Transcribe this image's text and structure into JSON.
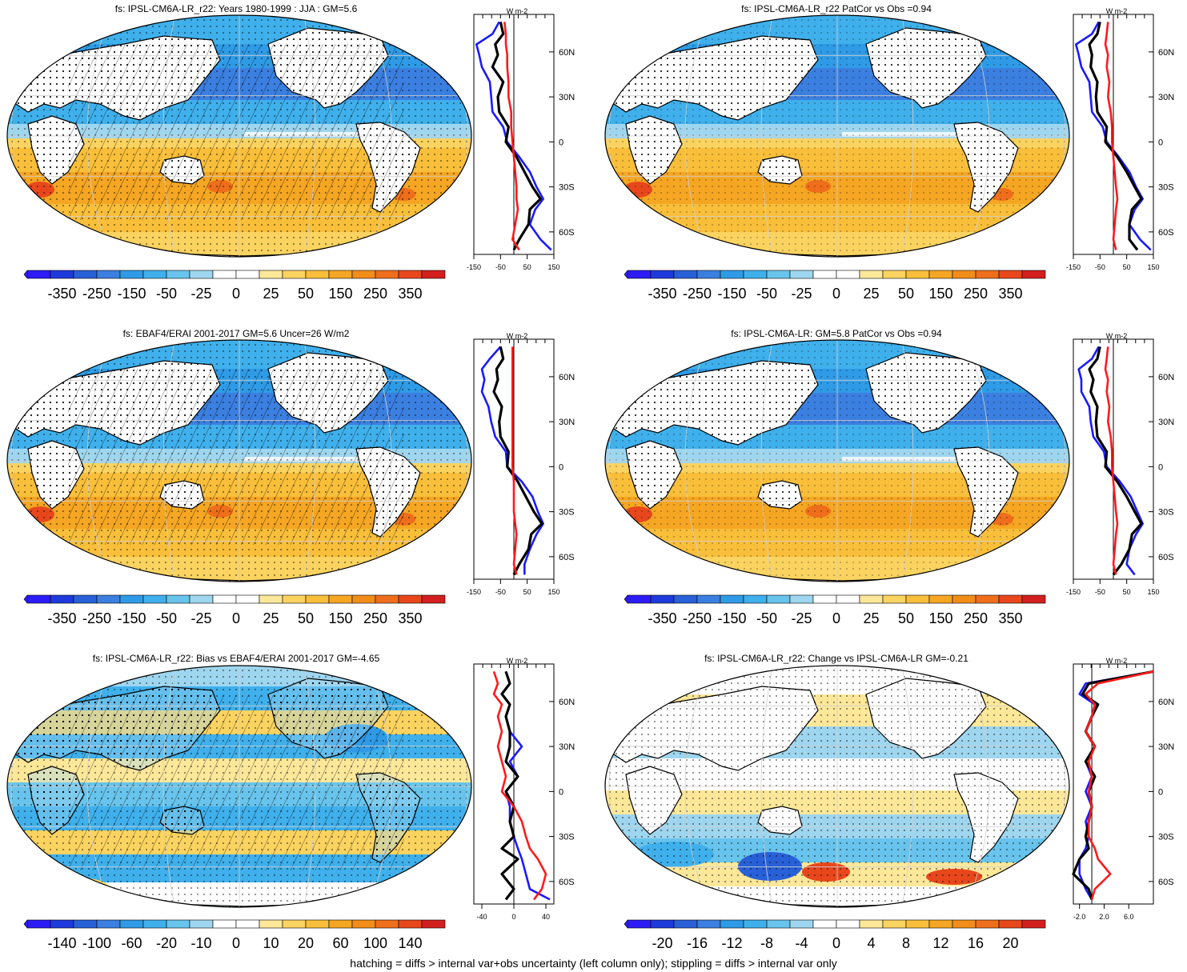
{
  "chart_data": [
    {
      "type": "map",
      "id": "p1",
      "title": "fs: IPSL-CM6A-LR_r22: Years 1980-1999 : JJA : GM=5.6",
      "colorbar_ticks": [
        "-350",
        "-250",
        "-150",
        "-50",
        "-25",
        "0",
        "25",
        "50",
        "150",
        "250",
        "350"
      ],
      "colorbar_range": [
        -350,
        350
      ],
      "hatching": true,
      "zonal_mean": {
        "ylabel": "W m-2",
        "xticks": [
          "-150",
          "-50",
          "50",
          "150"
        ],
        "xlim": [
          -150,
          150
        ],
        "lat_labels": [
          "60N",
          "30N",
          "0",
          "30S",
          "60S"
        ],
        "series": [
          {
            "name": "blue",
            "color": "#1a1aff",
            "lat": [
              80,
              72,
              65,
              58,
              50,
              40,
              30,
              20,
              10,
              0,
              -10,
              -20,
              -30,
              -38,
              -45,
              -55,
              -65,
              -72
            ],
            "values": [
              -55,
              -80,
              -140,
              -130,
              -120,
              -90,
              -85,
              -80,
              -40,
              -25,
              20,
              60,
              85,
              110,
              80,
              60,
              100,
              140
            ]
          },
          {
            "name": "black",
            "color": "#000000",
            "lat": [
              80,
              72,
              65,
              58,
              50,
              40,
              30,
              20,
              10,
              0,
              -10,
              -20,
              -30,
              -38,
              -45,
              -55,
              -65,
              -72
            ],
            "values": [
              -50,
              -40,
              -70,
              -60,
              -80,
              -40,
              -60,
              -55,
              -20,
              -30,
              10,
              40,
              70,
              100,
              60,
              55,
              20,
              0
            ]
          },
          {
            "name": "red",
            "color": "#ff1a1a",
            "lat": [
              80,
              72,
              65,
              58,
              50,
              40,
              30,
              20,
              10,
              0,
              -10,
              -20,
              -30,
              -38,
              -45,
              -55,
              -65,
              -72
            ],
            "values": [
              -35,
              -30,
              -30,
              -25,
              -25,
              -20,
              -20,
              -10,
              -10,
              -5,
              0,
              5,
              10,
              10,
              15,
              5,
              -5,
              20
            ]
          }
        ]
      }
    },
    {
      "type": "map",
      "id": "p2",
      "title": "fs: IPSL-CM6A-LR_r22 PatCor vs Obs =0.94",
      "colorbar_ticks": [
        "-350",
        "-250",
        "-150",
        "-50",
        "-25",
        "0",
        "25",
        "50",
        "150",
        "250",
        "350"
      ],
      "colorbar_range": [
        -350,
        350
      ],
      "hatching": false,
      "zonal_mean": {
        "ylabel": "W m-2",
        "xticks": [
          "-150",
          "-50",
          "50",
          "150"
        ],
        "xlim": [
          -150,
          150
        ],
        "lat_labels": [
          "60N",
          "30N",
          "0",
          "30S",
          "60S"
        ],
        "series": [
          {
            "name": "blue",
            "color": "#1a1aff",
            "lat": [
              80,
              72,
              65,
              58,
              50,
              40,
              30,
              20,
              10,
              0,
              -10,
              -20,
              -30,
              -38,
              -45,
              -55,
              -65,
              -72
            ],
            "values": [
              -55,
              -80,
              -140,
              -130,
              -120,
              -90,
              -85,
              -80,
              -40,
              -25,
              20,
              60,
              85,
              110,
              80,
              60,
              100,
              140
            ]
          },
          {
            "name": "black",
            "color": "#000000",
            "lat": [
              80,
              72,
              65,
              58,
              50,
              40,
              30,
              20,
              10,
              0,
              -10,
              -20,
              -30,
              -38,
              -45,
              -55,
              -65,
              -72
            ],
            "values": [
              -50,
              -60,
              -90,
              -80,
              -85,
              -60,
              -65,
              -60,
              -25,
              -30,
              15,
              50,
              80,
              105,
              70,
              60,
              60,
              90
            ]
          },
          {
            "name": "red",
            "color": "#ff1a1a",
            "lat": [
              80,
              72,
              65,
              58,
              50,
              40,
              30,
              20,
              10,
              0,
              -10,
              -20,
              -30,
              -38,
              -45,
              -55,
              -65,
              -72
            ],
            "values": [
              -20,
              -25,
              -30,
              -20,
              -25,
              -15,
              -20,
              -10,
              -5,
              -5,
              0,
              5,
              10,
              15,
              10,
              5,
              0,
              10
            ]
          }
        ]
      }
    },
    {
      "type": "map",
      "id": "p3",
      "title": "fs: EBAF4/ERAI 2001-2017 GM=5.6 Uncer=26 W/m2",
      "colorbar_ticks": [
        "-350",
        "-250",
        "-150",
        "-50",
        "-25",
        "0",
        "25",
        "50",
        "150",
        "250",
        "350"
      ],
      "colorbar_range": [
        -350,
        350
      ],
      "hatching": true,
      "zonal_mean": {
        "ylabel": "W m-2",
        "xticks": [
          "-150",
          "-50",
          "50",
          "150"
        ],
        "xlim": [
          -150,
          150
        ],
        "lat_labels": [
          "60N",
          "30N",
          "0",
          "30S",
          "60S"
        ],
        "series": [
          {
            "name": "blue",
            "color": "#1a1aff",
            "lat": [
              80,
              72,
              65,
              58,
              50,
              40,
              30,
              20,
              10,
              0,
              -10,
              -20,
              -30,
              -38,
              -45,
              -55,
              -65,
              -72
            ],
            "values": [
              -50,
              -90,
              -120,
              -110,
              -120,
              -95,
              -85,
              -70,
              -30,
              -25,
              30,
              70,
              90,
              110,
              85,
              60,
              40,
              40
            ]
          },
          {
            "name": "black",
            "color": "#000000",
            "lat": [
              80,
              72,
              65,
              58,
              50,
              40,
              30,
              20,
              10,
              0,
              -10,
              -20,
              -30,
              -38,
              -45,
              -55,
              -65,
              -72
            ],
            "values": [
              -50,
              -40,
              -65,
              -60,
              -75,
              -45,
              -55,
              -50,
              -20,
              -25,
              15,
              45,
              75,
              105,
              65,
              55,
              20,
              0
            ]
          },
          {
            "name": "red",
            "color": "#ff1a1a",
            "lat": [
              80,
              72,
              65,
              58,
              50,
              40,
              30,
              20,
              10,
              0,
              -10,
              -20,
              -30,
              -38,
              -45,
              -55,
              -65,
              -72
            ],
            "values": [
              -5,
              -5,
              -5,
              -5,
              -5,
              -5,
              -5,
              -5,
              -5,
              -5,
              0,
              0,
              0,
              5,
              10,
              5,
              0,
              10
            ]
          }
        ]
      }
    },
    {
      "type": "map",
      "id": "p4",
      "title": "fs: IPSL-CM6A-LR: GM=5.8 PatCor vs Obs =0.94",
      "colorbar_ticks": [
        "-350",
        "-250",
        "-150",
        "-50",
        "-25",
        "0",
        "25",
        "50",
        "150",
        "250",
        "350"
      ],
      "colorbar_range": [
        -350,
        350
      ],
      "hatching": false,
      "zonal_mean": {
        "ylabel": "W m-2",
        "xticks": [
          "-150",
          "-50",
          "50",
          "150"
        ],
        "xlim": [
          -150,
          150
        ],
        "lat_labels": [
          "60N",
          "30N",
          "0",
          "30S",
          "60S"
        ],
        "series": [
          {
            "name": "blue",
            "color": "#1a1aff",
            "lat": [
              80,
              72,
              65,
              58,
              50,
              40,
              30,
              20,
              10,
              0,
              -10,
              -20,
              -30,
              -38,
              -45,
              -55,
              -65,
              -72
            ],
            "values": [
              -55,
              -80,
              -130,
              -120,
              -120,
              -90,
              -85,
              -75,
              -35,
              -25,
              25,
              65,
              90,
              110,
              85,
              60,
              50,
              80
            ]
          },
          {
            "name": "black",
            "color": "#000000",
            "lat": [
              80,
              72,
              65,
              58,
              50,
              40,
              30,
              20,
              10,
              0,
              -10,
              -20,
              -30,
              -38,
              -45,
              -55,
              -65,
              -72
            ],
            "values": [
              -50,
              -60,
              -90,
              -75,
              -85,
              -60,
              -65,
              -60,
              -25,
              -30,
              15,
              50,
              80,
              105,
              70,
              60,
              30,
              0
            ]
          },
          {
            "name": "red",
            "color": "#ff1a1a",
            "lat": [
              80,
              72,
              65,
              58,
              50,
              40,
              30,
              20,
              10,
              0,
              -10,
              -20,
              -30,
              -38,
              -45,
              -55,
              -65,
              -72
            ],
            "values": [
              -20,
              -25,
              -30,
              -20,
              -25,
              -15,
              -20,
              -10,
              -5,
              -5,
              0,
              5,
              10,
              15,
              10,
              5,
              0,
              10
            ]
          }
        ]
      }
    },
    {
      "type": "map",
      "id": "p5",
      "title": "fs: IPSL-CM6A-LR_r22: Bias vs EBAF4/ERAI 2001-2017 GM=-4.65",
      "colorbar_ticks": [
        "-140",
        "-100",
        "-60",
        "-20",
        "-10",
        "0",
        "10",
        "20",
        "60",
        "100",
        "140"
      ],
      "colorbar_range": [
        -140,
        140
      ],
      "hatching": true,
      "zonal_mean": {
        "ylabel": "W m-2",
        "xticks": [
          "-40",
          "0",
          "40"
        ],
        "xlim": [
          -50,
          50
        ],
        "lat_labels": [
          "60N",
          "30N",
          "0",
          "30S",
          "60S"
        ],
        "series": [
          {
            "name": "blue",
            "color": "#1a1aff",
            "lat": [
              80,
              72,
              65,
              58,
              50,
              40,
              30,
              20,
              10,
              0,
              -10,
              -20,
              -30,
              -38,
              -45,
              -55,
              -65,
              -72
            ],
            "values": [
              -10,
              -5,
              -15,
              -5,
              -10,
              -5,
              10,
              -5,
              5,
              -10,
              -5,
              -5,
              0,
              5,
              10,
              15,
              20,
              45
            ]
          },
          {
            "name": "black",
            "color": "#000000",
            "lat": [
              80,
              72,
              65,
              58,
              50,
              40,
              30,
              20,
              10,
              0,
              -10,
              -20,
              -30,
              -38,
              -45,
              -55,
              -65,
              -72
            ],
            "values": [
              -10,
              -5,
              -15,
              -5,
              -10,
              -5,
              -5,
              -10,
              5,
              -10,
              0,
              -5,
              0,
              -15,
              5,
              -15,
              0,
              -10
            ]
          },
          {
            "name": "red",
            "color": "#ff1a1a",
            "lat": [
              80,
              72,
              65,
              58,
              50,
              40,
              30,
              20,
              10,
              0,
              -10,
              -20,
              -30,
              -38,
              -45,
              -55,
              -65,
              -72
            ],
            "values": [
              -25,
              -20,
              -25,
              -15,
              -20,
              -15,
              -20,
              -15,
              -10,
              -15,
              0,
              10,
              15,
              20,
              30,
              40,
              35,
              25
            ]
          }
        ]
      }
    },
    {
      "type": "map",
      "id": "p6",
      "title": "fs: IPSL-CM6A-LR_r22: Change vs IPSL-CM6A-LR GM=-0.21",
      "colorbar_ticks": [
        "-20",
        "-16",
        "-12",
        "-8",
        "-4",
        "0",
        "4",
        "8",
        "12",
        "16",
        "20"
      ],
      "colorbar_range": [
        -22,
        22
      ],
      "hatching": false,
      "zonal_mean": {
        "ylabel": "W m-2",
        "xticks": [
          "-2.0",
          "2.0",
          "6.0"
        ],
        "xlim": [
          -3,
          10
        ],
        "lat_labels": [
          "60N",
          "30N",
          "0",
          "30S",
          "60S"
        ],
        "series": [
          {
            "name": "blue",
            "color": "#1a1aff",
            "lat": [
              80,
              72,
              65,
              58,
              50,
              40,
              30,
              20,
              10,
              0,
              -10,
              -20,
              -30,
              -38,
              -45,
              -55,
              -65,
              -72
            ],
            "values": [
              10,
              -1,
              -2,
              0.5,
              0,
              -1,
              0.5,
              -1,
              0,
              -1,
              0,
              -1,
              -0.5,
              -1,
              -2,
              -2,
              -1,
              0
            ]
          },
          {
            "name": "black",
            "color": "#000000",
            "lat": [
              80,
              72,
              65,
              58,
              50,
              40,
              30,
              20,
              10,
              0,
              -10,
              -20,
              -30,
              -38,
              -45,
              -55,
              -65,
              -72
            ],
            "values": [
              10,
              -0.5,
              -1.5,
              1,
              0,
              -1,
              0.5,
              -1,
              0.5,
              -0.5,
              0,
              -0.5,
              -1,
              -0.5,
              -2,
              -3,
              -0.5,
              0
            ]
          },
          {
            "name": "red",
            "color": "#ff1a1a",
            "lat": [
              80,
              72,
              65,
              58,
              50,
              40,
              30,
              20,
              10,
              0,
              -10,
              -20,
              -30,
              -38,
              -45,
              -55,
              -65,
              -72
            ],
            "values": [
              10,
              1,
              -1,
              0.5,
              0,
              -1,
              0.5,
              -0.5,
              0,
              -0.5,
              0,
              -0.5,
              -0.5,
              0.5,
              1,
              3,
              0.5,
              0
            ]
          }
        ]
      }
    }
  ],
  "footer": "hatching = diffs > internal var+obs uncertainty (left column only); stippling = diffs > internal var only",
  "colors": {
    "neg_palette": [
      "#2d1cf5",
      "#1e3adc",
      "#2860d8",
      "#3b7fe0",
      "#2f9be6",
      "#3fb0ec",
      "#68c4ec",
      "#9fd6ef",
      "#ffffff"
    ],
    "pos_palette": [
      "#ffffff",
      "#fde89a",
      "#fbd360",
      "#f9bf3a",
      "#f5a623",
      "#f28d1a",
      "#ef6e1b",
      "#e8471c",
      "#d41f1f"
    ],
    "land": "#ffffff"
  }
}
